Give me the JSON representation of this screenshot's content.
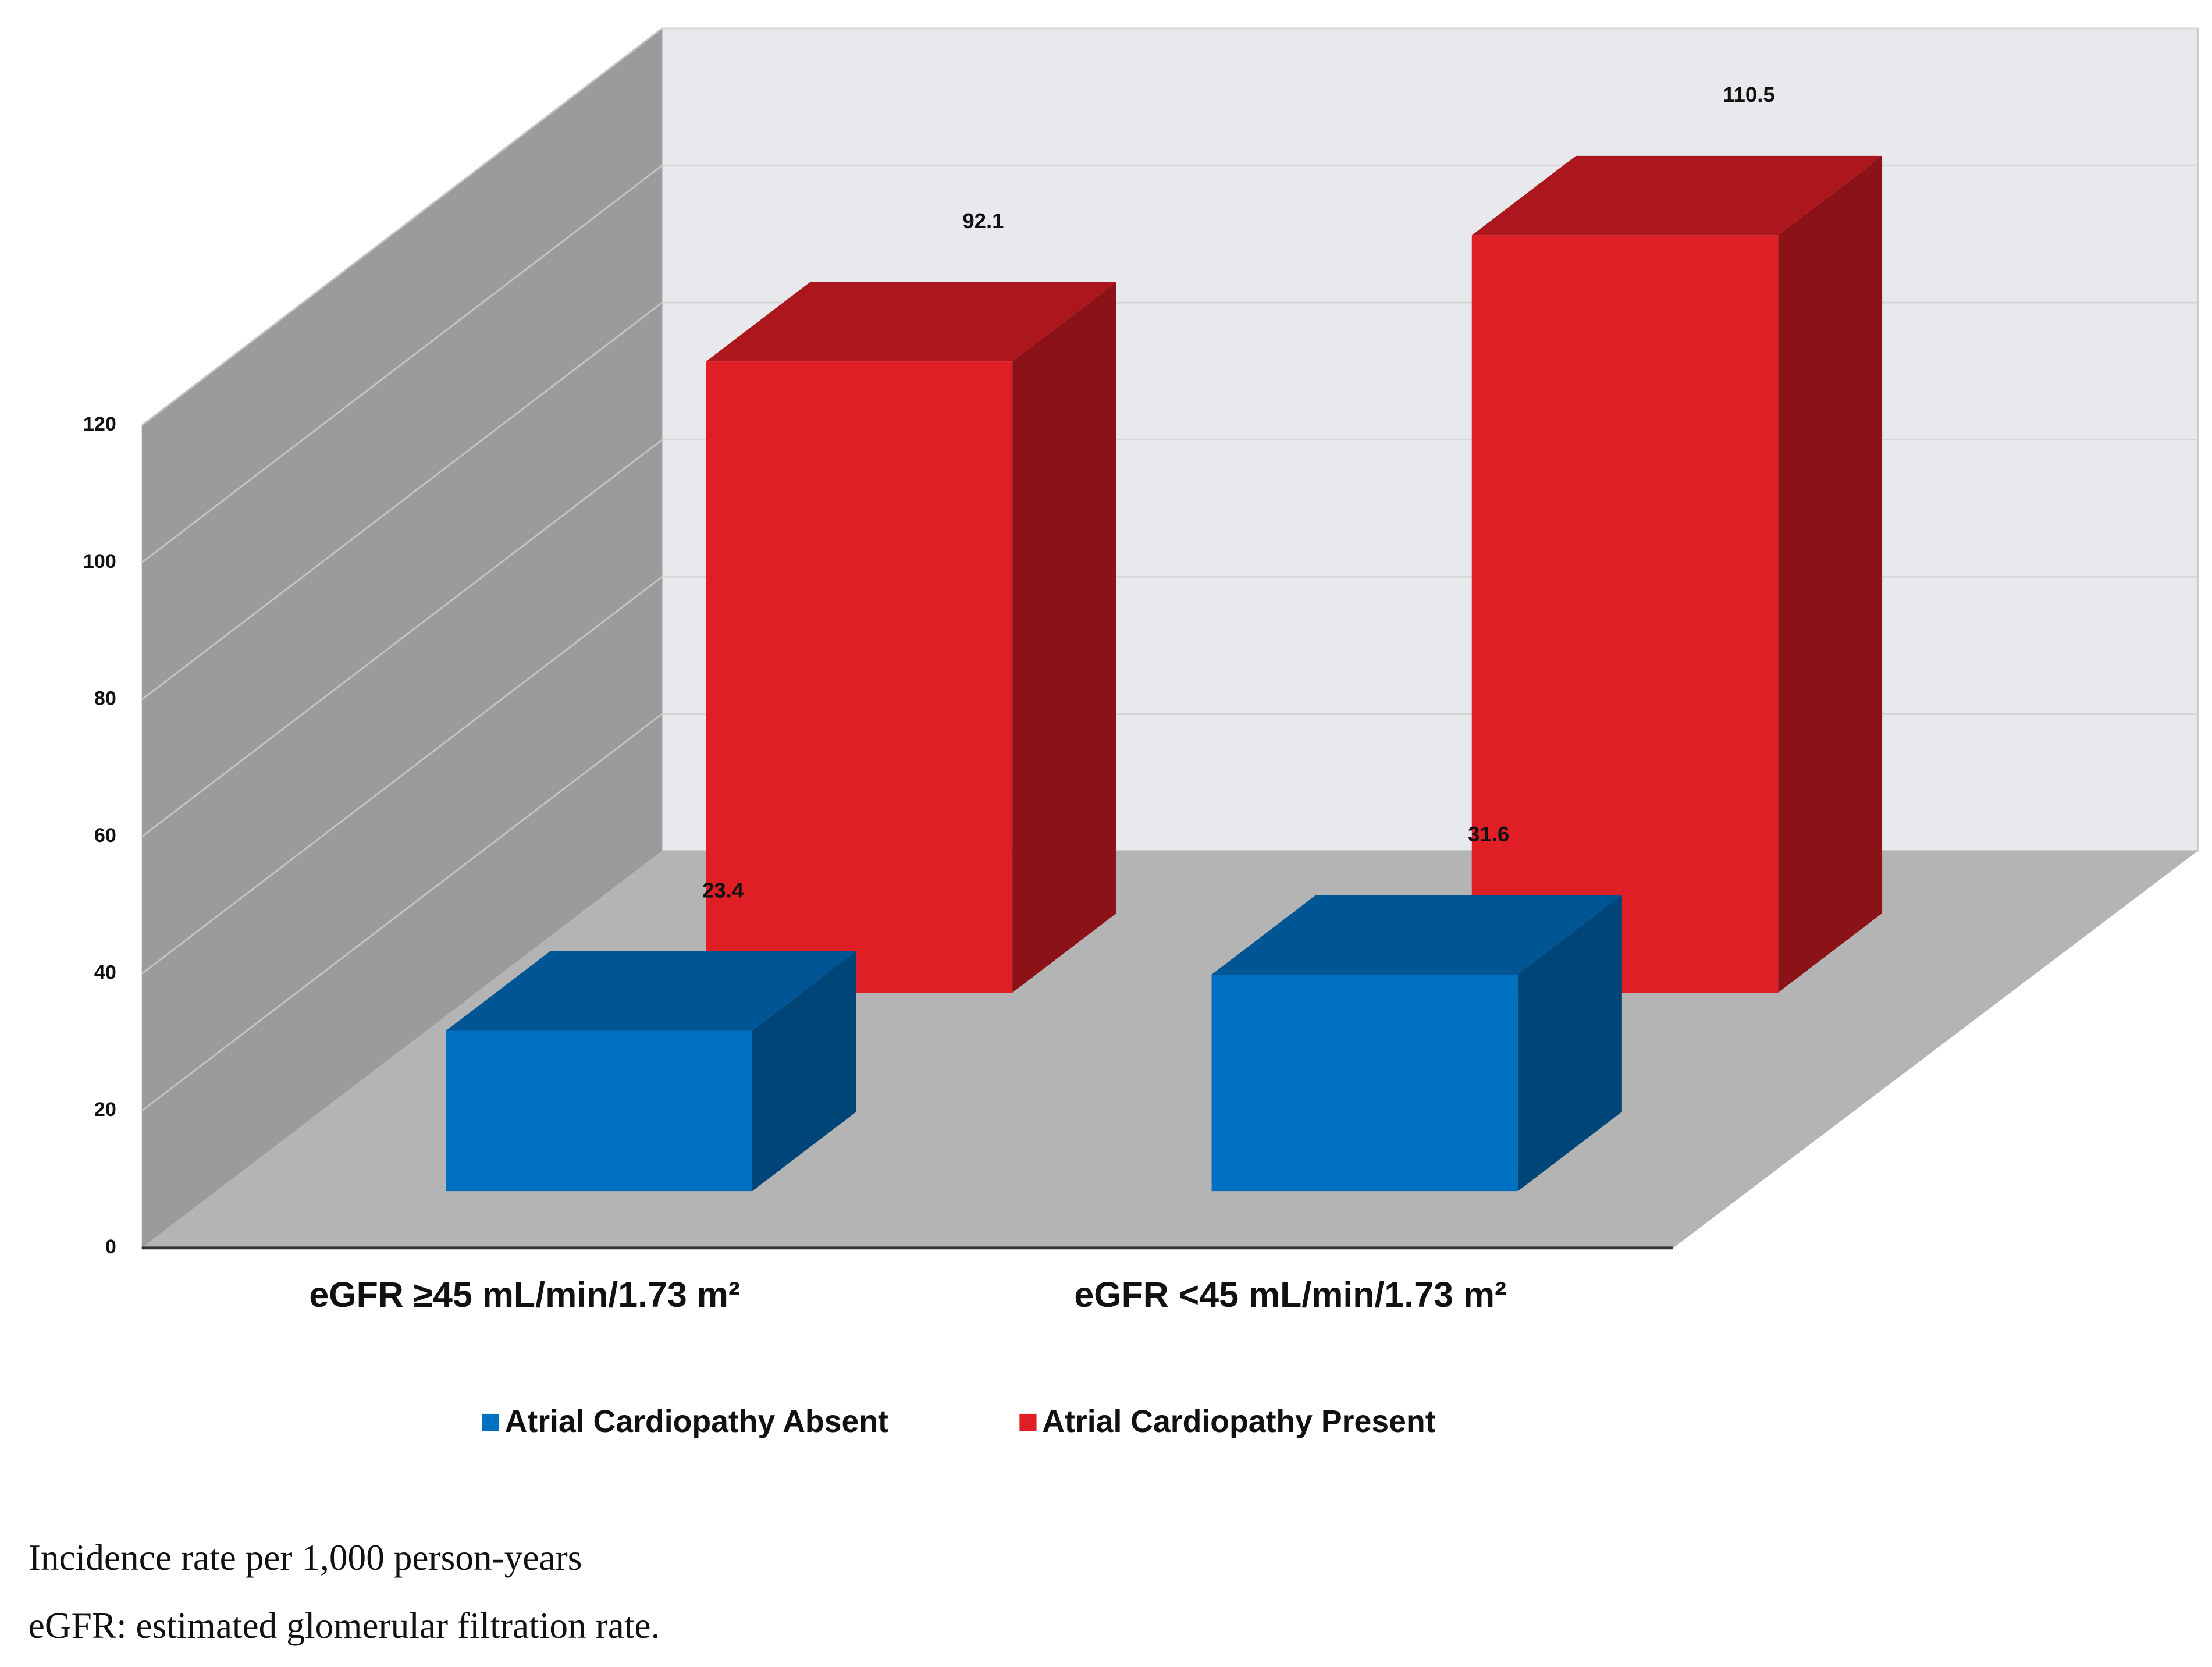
{
  "chart_data": {
    "type": "bar3d",
    "categories": [
      "eGFR ≥45 mL/min/1.73 m²",
      "eGFR <45 mL/min/1.73 m²"
    ],
    "series": [
      {
        "name": "Atrial Cardiopathy Absent",
        "color": "#0070c0",
        "values": [
          23.4,
          31.6
        ]
      },
      {
        "name": "Atrial Cardiopathy Present",
        "color": "#e01e26",
        "values": [
          92.1,
          110.5
        ]
      }
    ],
    "ylim": [
      0,
      120
    ],
    "yticks": [
      0,
      20,
      40,
      60,
      80,
      100,
      120
    ],
    "grid": true,
    "legend": "bottom",
    "notes": [
      "Incidence rate per 1,000 person-years",
      "eGFR: estimated glomerular filtration rate."
    ]
  }
}
